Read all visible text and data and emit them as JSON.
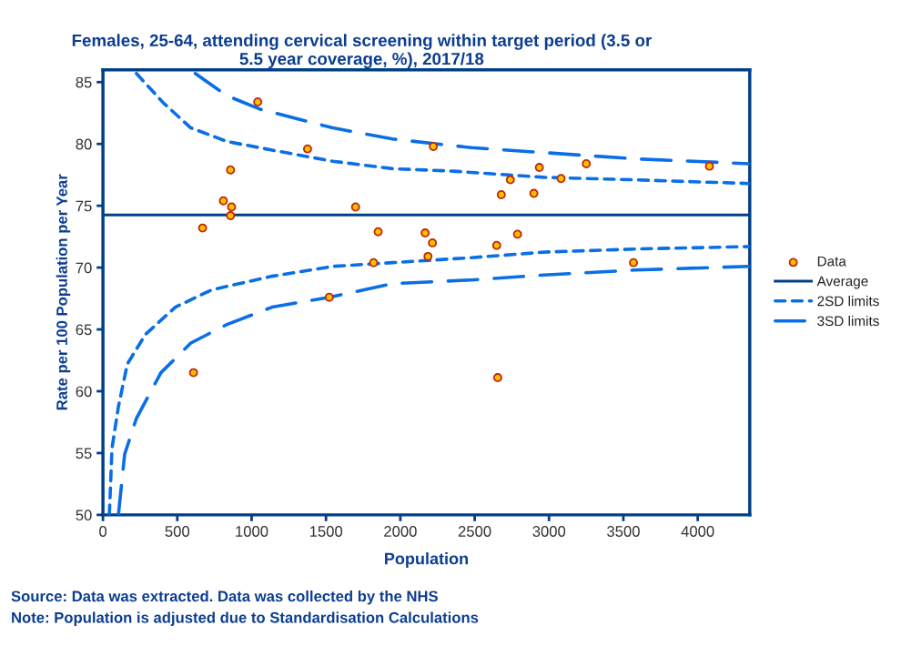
{
  "chart_data": {
    "type": "scatter",
    "title": "Females, 25-64, attending cervical screening within target period (3.5 or\n5.5 year coverage, %), 2017/18",
    "xlabel": "Population",
    "ylabel": "Rate per 100 Population per Year",
    "xlim": [
      0,
      4350
    ],
    "xticks": [
      0,
      500,
      1000,
      1500,
      2000,
      2500,
      3000,
      3500,
      4000
    ],
    "ylim": [
      50,
      86
    ],
    "yticks": [
      50,
      55,
      60,
      65,
      70,
      75,
      80,
      85
    ],
    "grid": false,
    "legend": "right",
    "ref_lines": [
      {
        "axis": "y",
        "value": 74.26,
        "label": "Average",
        "color": "#003f8a",
        "line_style": "solid"
      }
    ],
    "series": [
      {
        "name": "Data",
        "color": "#ffc000",
        "marker": "circle",
        "x": [
          1041,
          1376,
          2222,
          858,
          810,
          865,
          858,
          670,
          1699,
          1851,
          2167,
          2216,
          1820,
          2186,
          1522,
          609,
          2655,
          2679,
          2740,
          2898,
          2935,
          3081,
          3251,
          4079,
          2648,
          2788,
          3568
        ],
        "values": [
          83.4,
          79.6,
          79.8,
          77.9,
          75.4,
          74.9,
          74.2,
          73.2,
          74.9,
          72.9,
          72.8,
          72.0,
          70.4,
          70.9,
          67.6,
          61.5,
          61.1,
          75.9,
          77.1,
          76.0,
          78.1,
          77.2,
          78.4,
          78.2,
          71.8,
          72.7,
          70.4
        ]
      },
      {
        "name": "2SD limits",
        "type": "line",
        "color": "#0a6ee6",
        "marker": "none",
        "line_style": "dotted",
        "x": [
          225,
          408,
          591,
          834,
          1138,
          1546,
          1948,
          2356,
          2965,
          3574,
          4347
        ],
        "values": [
          85.7,
          83.3,
          81.3,
          80.2,
          79.5,
          78.6,
          78.0,
          77.8,
          77.3,
          77.1,
          76.8
        ]
      },
      {
        "type": "line",
        "color": "#0a6ee6",
        "marker": "none",
        "line_style": "dotted",
        "x": [
          43,
          61,
          104,
          164,
          286,
          487,
          731,
          1138,
          1546,
          1948,
          2478,
          2965,
          3574,
          4350
        ],
        "values": [
          50,
          55.4,
          58.75,
          62.2,
          64.6,
          66.8,
          68.2,
          69.3,
          70.1,
          70.4,
          70.8,
          71.25,
          71.5,
          71.7
        ]
      },
      {
        "name": "3SD limits",
        "type": "line",
        "color": "#0a6ee6",
        "marker": "none",
        "line_style": "dashed",
        "x": [
          621,
          834,
          1059,
          1546,
          1948,
          2478,
          2965,
          3574,
          4350
        ],
        "values": [
          85.7,
          83.9,
          82.8,
          81.3,
          80.4,
          79.7,
          79.3,
          78.8,
          78.4
        ]
      },
      {
        "type": "line",
        "color": "#0a6ee6",
        "marker": "none",
        "line_style": "dashed",
        "x": [
          104,
          146,
          225,
          390,
          591,
          834,
          1138,
          1522,
          1948,
          2478,
          2965,
          3574,
          4350
        ],
        "values": [
          50,
          54.9,
          57.8,
          61.5,
          63.9,
          65.4,
          66.8,
          67.6,
          68.7,
          69.0,
          69.4,
          69.8,
          70.1
        ]
      }
    ],
    "annotations": [
      "Source: Data was extracted. Data was collected by the NHS",
      "Note: Population is adjusted due to Standardisation Calculations"
    ]
  }
}
